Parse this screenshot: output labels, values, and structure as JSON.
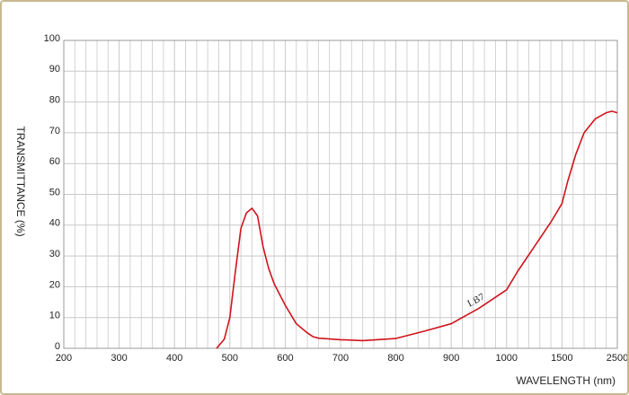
{
  "chart_data": {
    "type": "line",
    "x_label": "WAVELENGTH (nm)",
    "y_label": "TRANSMITTANCE  (%)",
    "annotation": "LB7",
    "x": [
      476,
      490,
      500,
      510,
      520,
      530,
      540,
      550,
      560,
      570,
      580,
      600,
      620,
      640,
      650,
      660,
      700,
      740,
      800,
      850,
      900,
      950,
      1000,
      1100,
      1250,
      1400,
      1500,
      1600,
      1750,
      1900,
      2100,
      2300,
      2400,
      2500
    ],
    "series": [
      {
        "name": "LB7",
        "color": "#d0141c",
        "values": [
          0,
          3,
          10,
          25,
          39,
          44,
          45.5,
          43,
          33,
          26,
          21,
          14,
          8,
          5,
          3.8,
          3.3,
          2.8,
          2.5,
          3.2,
          5.5,
          8,
          13,
          19,
          25,
          33,
          41,
          47,
          54,
          63,
          70,
          74.5,
          76.5,
          77,
          76.5
        ]
      }
    ],
    "xlim": [
      200,
      2500
    ],
    "xticks": [
      200,
      300,
      400,
      500,
      600,
      700,
      800,
      900,
      1000,
      1500,
      2500
    ],
    "ylim": [
      0,
      100
    ],
    "yticks": [
      0,
      10,
      20,
      30,
      40,
      50,
      60,
      70,
      80,
      90,
      100
    ],
    "grid": true
  }
}
